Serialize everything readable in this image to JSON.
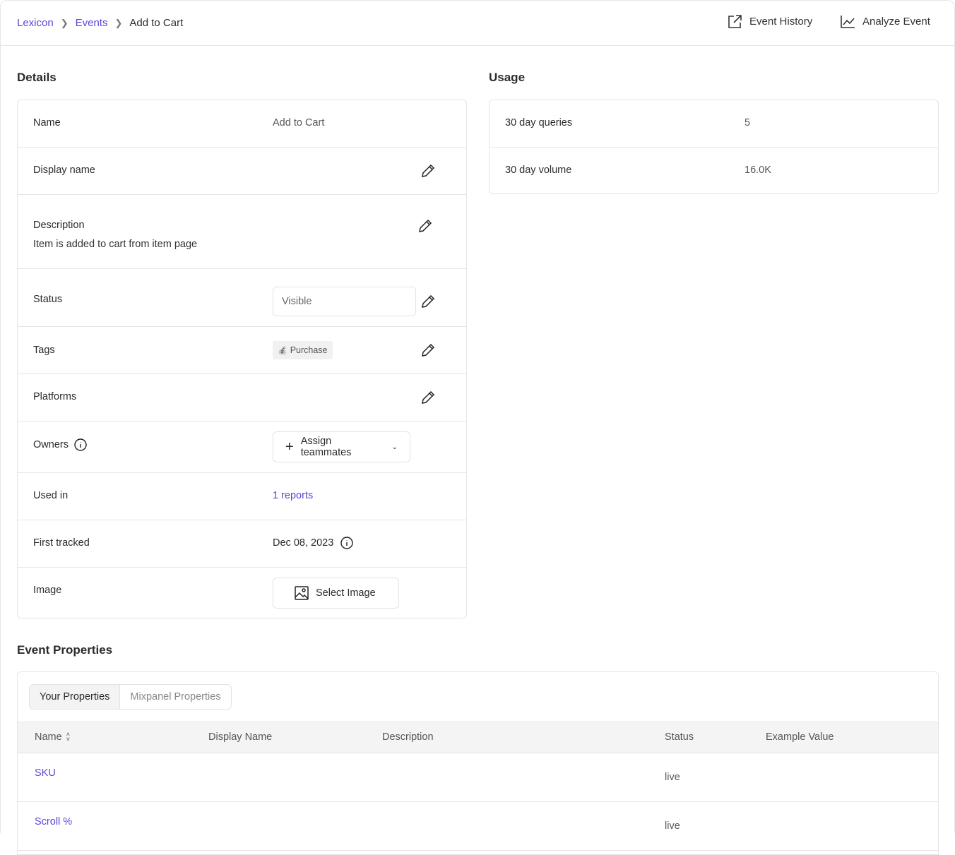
{
  "breadcrumb": {
    "items": [
      "Lexicon",
      "Events",
      "Add to Cart"
    ]
  },
  "header_actions": {
    "event_history": "Event History",
    "analyze_event": "Analyze Event"
  },
  "details": {
    "title": "Details",
    "name_label": "Name",
    "name_value": "Add to Cart",
    "display_name_label": "Display name",
    "description_label": "Description",
    "description_value": "Item is added to cart from item page",
    "status_label": "Status",
    "status_value": "Visible",
    "tags_label": "Tags",
    "tag_value": "Purchase",
    "tag_emoji": "💰",
    "platforms_label": "Platforms",
    "owners_label": "Owners",
    "assign_label": "Assign teammates",
    "used_in_label": "Used in",
    "used_in_value": "1 reports",
    "first_tracked_label": "First tracked",
    "first_tracked_value": "Dec 08, 2023",
    "image_label": "Image",
    "select_image_label": "Select Image"
  },
  "usage": {
    "title": "Usage",
    "queries_label": "30 day queries",
    "queries_value": "5",
    "volume_label": "30 day volume",
    "volume_value": "16.0K"
  },
  "event_properties": {
    "title": "Event Properties",
    "tabs": [
      "Your Properties",
      "Mixpanel Properties"
    ],
    "columns": [
      "Name",
      "Display Name",
      "Description",
      "Status",
      "Example Value"
    ],
    "rows": [
      {
        "name": "SKU",
        "status": "live"
      },
      {
        "name": "Scroll %",
        "status": "live"
      }
    ]
  },
  "colors": {
    "accent": "#5b45d6"
  }
}
